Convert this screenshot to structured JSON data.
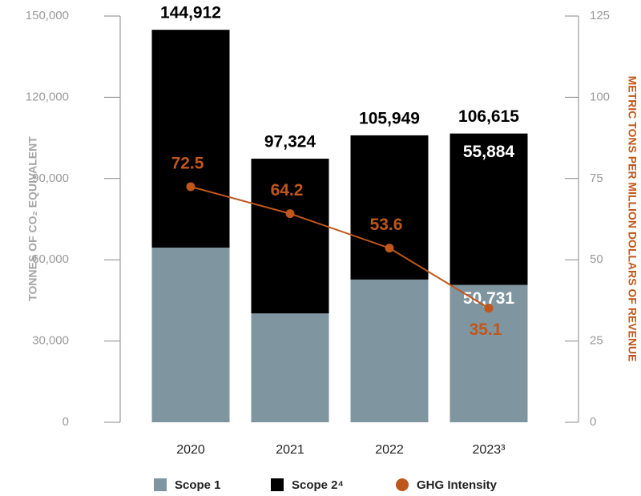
{
  "chart_data": {
    "type": "bar",
    "stacked": true,
    "categories": [
      "2020",
      "2021",
      "2022",
      "2023³"
    ],
    "total_labels": [
      "144,912",
      "97,324",
      "105,949",
      "106,615"
    ],
    "series": [
      {
        "name": "Scope 1",
        "color": "#7f959f",
        "values": [
          64500,
          40200,
          52700,
          50731
        ],
        "value_labels": [
          null,
          null,
          null,
          "50,731"
        ]
      },
      {
        "name": "Scope 2⁴",
        "color": "#000000",
        "values": [
          80412,
          57124,
          53249,
          55884
        ],
        "value_labels": [
          null,
          null,
          null,
          "55,884"
        ]
      },
      {
        "name": "GHG Intensity",
        "color": "#c0561b",
        "type": "line",
        "axis": "y2",
        "values": [
          72.5,
          64.2,
          53.6,
          35.1
        ]
      }
    ],
    "ylabel": "TONNES OF CO₂ EQUIVALENT",
    "y2label": "METRIC TONS PER MILLION DOLLARS OF REVENUE",
    "ylim": [
      0,
      150000
    ],
    "yticks": [
      0,
      {
        "value": 30000,
        "label": "30,000"
      },
      {
        "value": 60000,
        "label": "60,000"
      },
      {
        "value": 90000,
        "label": "90,000"
      },
      {
        "value": 120000,
        "label": "120,000"
      },
      {
        "value": 150000,
        "label": "150,000"
      }
    ],
    "y2lim": [
      0,
      125
    ],
    "y2ticks": [
      0,
      25,
      50,
      75,
      100,
      125
    ],
    "legend": "bottom"
  }
}
